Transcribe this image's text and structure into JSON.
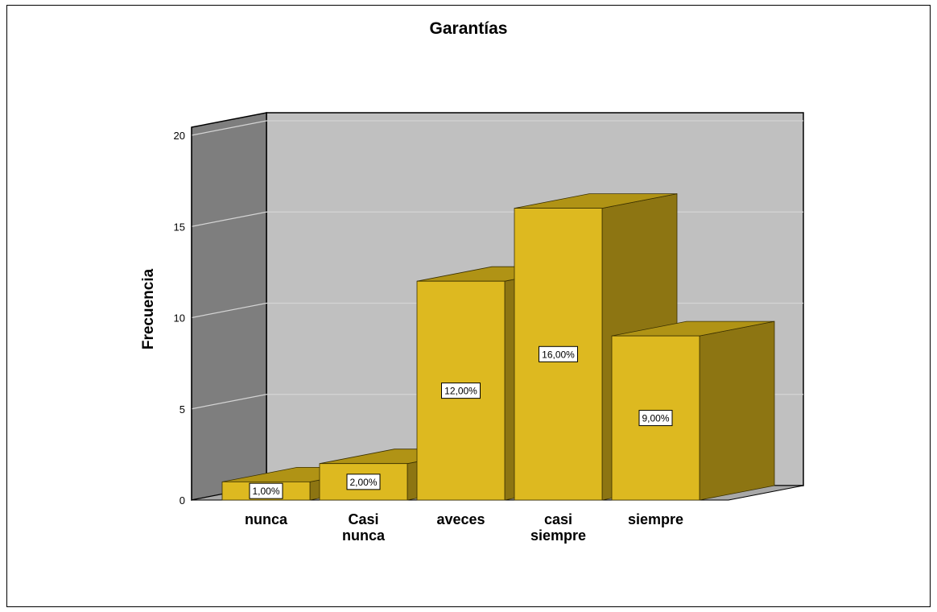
{
  "chart_data": {
    "type": "bar",
    "title": "Garantías",
    "xlabel": "",
    "ylabel": "Frecuencia",
    "categories": [
      [
        "nunca"
      ],
      [
        "Casi",
        "nunca"
      ],
      [
        "aveces"
      ],
      [
        "casi",
        "siempre"
      ],
      [
        "siempre"
      ]
    ],
    "values": [
      1,
      2,
      12,
      16,
      9
    ],
    "data_labels": [
      "1,00%",
      "2,00%",
      "12,00%",
      "16,00%",
      "9,00%"
    ],
    "ylim": [
      0,
      20
    ],
    "yticks": [
      0,
      5,
      10,
      15,
      20
    ],
    "grid": true,
    "style": "3d",
    "colors": {
      "bar_front": "#DDB920",
      "bar_side": "#8D7512",
      "bar_top": "#B09315",
      "back_wall": "#C0C0C0",
      "side_wall": "#7E7E7E",
      "floor": "#A8A8A8"
    }
  }
}
